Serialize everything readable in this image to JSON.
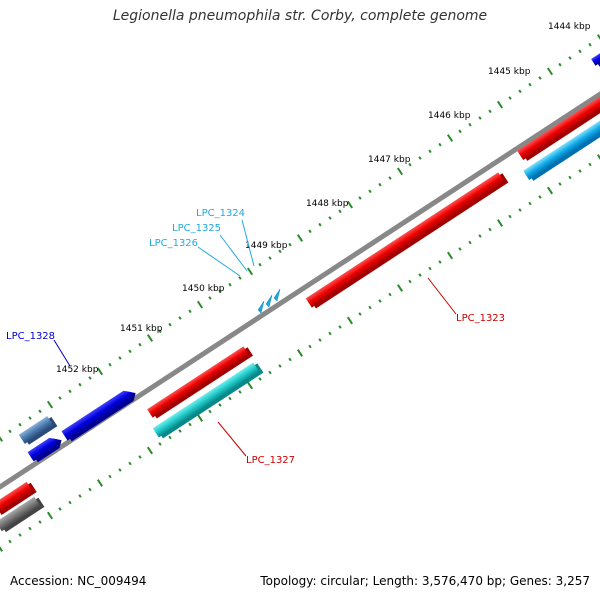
{
  "title": "Legionella pneumophila str. Corby, complete genome",
  "footer": {
    "accession": "Accession: NC_009494",
    "summary": "Topology: circular; Length: 3,576,470 bp; Genes: 3,257"
  },
  "scale_labels": [
    "1444 kbp",
    "1445 kbp",
    "1446 kbp",
    "1447 kbp",
    "1448 kbp",
    "1449 kbp",
    "1450 kbp",
    "1451 kbp",
    "1452 kbp"
  ],
  "gene_labels": {
    "lpc_1323": "LPC_1323",
    "lpc_1324": "LPC_1324",
    "lpc_1325": "LPC_1325",
    "lpc_1326": "LPC_1326",
    "lpc_1327": "LPC_1327",
    "lpc_1328": "LPC_1328"
  },
  "colors": {
    "backbone": "#888888",
    "forward_gene": "#e00000",
    "reverse_gene": "#1aa9e0",
    "cyan_gene": "#20c0c0",
    "blue_gene": "#0000dd",
    "steel_gene": "#4a7bb0",
    "grey_gene": "#777777",
    "tick": "#2a8a2a",
    "label_red": "#cc0000",
    "label_cyan": "#22aadd",
    "label_blue": "#0000cc"
  }
}
